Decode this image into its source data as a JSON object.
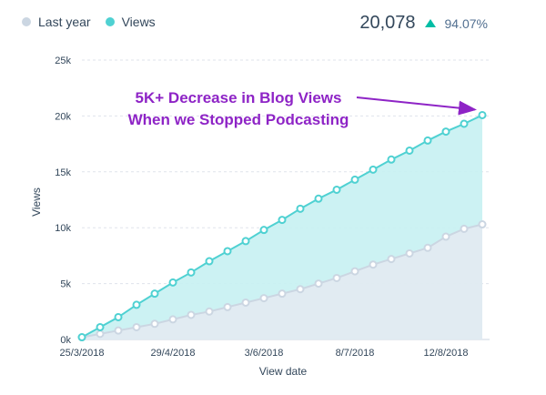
{
  "legend": [
    {
      "label": "Last year",
      "color": "#cbd6e2"
    },
    {
      "label": "Views",
      "color": "#4fd1d2"
    }
  ],
  "summary": {
    "total": "20,078",
    "change": "94.07%",
    "trend": "up"
  },
  "chart_data": {
    "type": "line",
    "xlabel": "View date",
    "ylabel": "Views",
    "x_tick_labels": [
      "25/3/2018",
      "29/4/2018",
      "3/6/2018",
      "8/7/2018",
      "12/8/2018"
    ],
    "y_tick_labels": [
      "0k",
      "5k",
      "10k",
      "15k",
      "20k",
      "25k"
    ],
    "ylim": [
      0,
      25000
    ],
    "grid": "horizontal dashed",
    "legend_position": "top-left",
    "x": [
      "25/3/2018",
      "1/4/2018",
      "8/4/2018",
      "15/4/2018",
      "22/4/2018",
      "29/4/2018",
      "6/5/2018",
      "13/5/2018",
      "20/5/2018",
      "27/5/2018",
      "3/6/2018",
      "10/6/2018",
      "17/6/2018",
      "24/6/2018",
      "1/7/2018",
      "8/7/2018",
      "15/7/2018",
      "22/7/2018",
      "29/7/2018",
      "5/8/2018",
      "12/8/2018",
      "19/8/2018",
      "26/8/2018"
    ],
    "series": [
      {
        "name": "Last year",
        "color": "#cbd6e2",
        "values": [
          200,
          500,
          800,
          1100,
          1400,
          1800,
          2200,
          2500,
          2900,
          3300,
          3700,
          4100,
          4500,
          5000,
          5500,
          6100,
          6700,
          7200,
          7700,
          8200,
          9200,
          9900,
          10300
        ]
      },
      {
        "name": "Views",
        "color": "#4fd1d2",
        "values": [
          200,
          1100,
          2000,
          3100,
          4100,
          5100,
          6000,
          7000,
          7900,
          8800,
          9800,
          10700,
          11700,
          12600,
          13400,
          14300,
          15200,
          16100,
          16900,
          17800,
          18600,
          19300,
          20078
        ]
      }
    ],
    "annotation": {
      "lines": [
        "5K+ Decrease in Blog Views",
        "When we Stopped Podcasting"
      ],
      "color": "#8e24c6",
      "points_to": {
        "x": "26/8/2018",
        "y": 20078
      }
    }
  }
}
